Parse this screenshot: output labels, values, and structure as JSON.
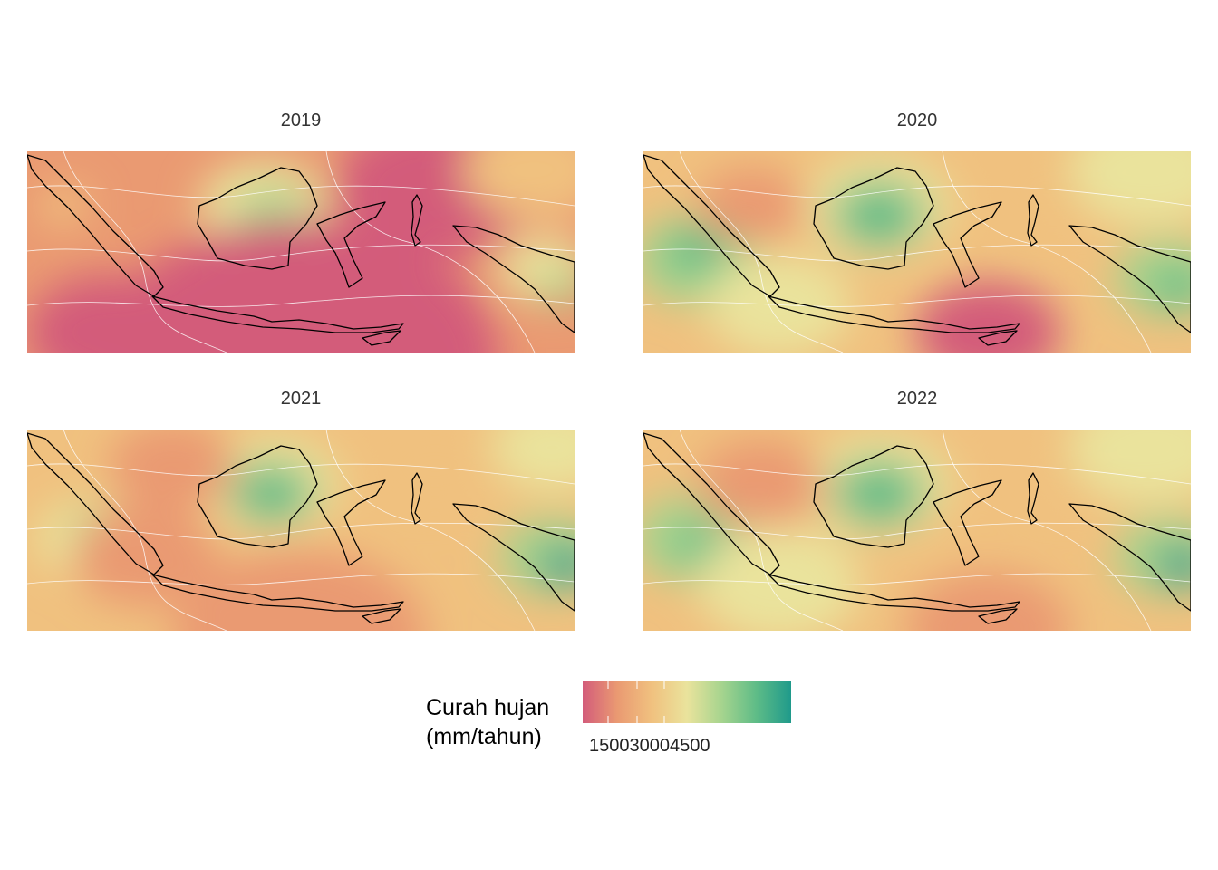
{
  "panels": [
    {
      "year": "2019"
    },
    {
      "year": "2020"
    },
    {
      "year": "2021"
    },
    {
      "year": "2022"
    }
  ],
  "legend": {
    "title": "Curah hujan\n(mm/tahun)",
    "tick_labels": "150030004500",
    "colors": [
      "#d35c7a",
      "#ea9a72",
      "#f0c17f",
      "#eae39c",
      "#a6d48e",
      "#5ebc87",
      "#1f9a8b"
    ]
  },
  "colors": {
    "coastline": "#000000",
    "contour": "#ffffff"
  }
}
